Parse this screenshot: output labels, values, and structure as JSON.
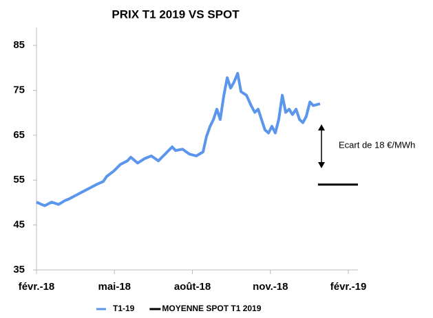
{
  "chart_data": {
    "type": "line",
    "title": "PRIX T1 2019 VS SPOT",
    "annotation": "Ecart de 18 €/MWh",
    "xlim": [
      0,
      12.37
    ],
    "xticks": [
      {
        "value": 0,
        "label": "févr.-18"
      },
      {
        "value": 3,
        "label": "mai-18"
      },
      {
        "value": 6,
        "label": "août-18"
      },
      {
        "value": 9,
        "label": "nov.-18"
      },
      {
        "value": 12,
        "label": "févr.-19"
      }
    ],
    "ylim": [
      35,
      89
    ],
    "yticks": [
      35,
      45,
      55,
      65,
      75,
      85
    ],
    "grid": false,
    "legend": "bottom",
    "series": [
      {
        "name": "T1-19",
        "color": "#5b95ec",
        "x": [
          0,
          0.19,
          0.32,
          0.58,
          0.85,
          1.11,
          1.25,
          1.51,
          1.77,
          2.04,
          2.3,
          2.57,
          2.7,
          2.97,
          3.23,
          3.5,
          3.63,
          3.89,
          4.16,
          4.42,
          4.69,
          4.95,
          5.22,
          5.35,
          5.62,
          5.88,
          6.15,
          6.41,
          6.54,
          6.68,
          6.81,
          6.94,
          7.07,
          7.21,
          7.34,
          7.47,
          7.6,
          7.74,
          7.87,
          8.08,
          8.26,
          8.4,
          8.53,
          8.66,
          8.79,
          8.93,
          9.06,
          9.19,
          9.32,
          9.46,
          9.59,
          9.72,
          9.85,
          9.99,
          10.12,
          10.25,
          10.38,
          10.52,
          10.65,
          10.91
        ],
        "values": [
          50.1,
          49.6,
          49.3,
          50.1,
          49.6,
          50.5,
          50.8,
          51.6,
          52.4,
          53.2,
          54.0,
          54.7,
          55.8,
          57.0,
          58.5,
          59.3,
          60.1,
          58.8,
          59.8,
          60.4,
          59.3,
          60.8,
          62.4,
          61.6,
          61.9,
          60.8,
          60.4,
          61.3,
          64.7,
          67.0,
          68.5,
          70.8,
          68.5,
          73.9,
          77.8,
          75.5,
          76.8,
          78.8,
          74.7,
          73.9,
          71.6,
          70.1,
          70.8,
          68.5,
          66.2,
          65.5,
          67.0,
          65.5,
          68.5,
          73.9,
          70.1,
          70.8,
          69.6,
          70.8,
          68.5,
          67.8,
          69.2,
          72.4,
          71.6,
          72.0
        ]
      },
      {
        "name": "MOYENNE SPOT T1 2019",
        "color": "#000000",
        "x": [
          10.83,
          12.37
        ],
        "values": [
          54,
          54
        ]
      }
    ]
  }
}
